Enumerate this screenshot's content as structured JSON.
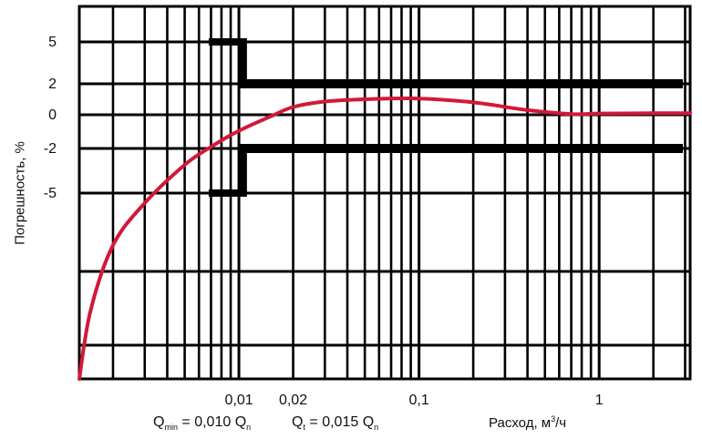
{
  "chart_data": {
    "type": "line",
    "ylabel": "Погрешность, %",
    "xlabel": "Расход, м³/ч",
    "xlabel_parts": {
      "text": "Расход, м",
      "sup": "3",
      "tail": "/ч"
    },
    "x_scale": "log",
    "xlim": [
      0.0013,
      3.2
    ],
    "y_ticks": [
      {
        "label": "5",
        "value": 5
      },
      {
        "label": "2",
        "value": 2
      },
      {
        "label": "0",
        "value": 0
      },
      {
        "label": "-2",
        "value": -2
      },
      {
        "label": "-5",
        "value": -5
      }
    ],
    "x_ticks": [
      {
        "label": "0,01",
        "value": 0.01
      },
      {
        "label": "0,02",
        "value": 0.02
      },
      {
        "label": "0,1",
        "value": 0.1
      },
      {
        "label": "1",
        "value": 1
      }
    ],
    "grid": true,
    "annotations": {
      "qmin": {
        "pre": "Q",
        "sub": "min",
        "mid": " = 0,010 Q",
        "sub2": "n"
      },
      "qt": {
        "pre": "Q",
        "sub": "t",
        "mid": " = 0,015 Q",
        "sub2": "n"
      }
    },
    "tolerance_band": {
      "outer": {
        "x_range": [
          0.008,
          0.0107
        ],
        "upper": 5,
        "lower": -5
      },
      "inner": {
        "x_range": [
          0.0107,
          3.2
        ],
        "upper": 2,
        "lower": -2
      }
    },
    "series": [
      {
        "color": "#d3183a",
        "points": [
          [
            0.0013,
            -20
          ],
          [
            0.0015,
            -14.5
          ],
          [
            0.002,
            -9.2
          ],
          [
            0.003,
            -5.8
          ],
          [
            0.005,
            -3.1
          ],
          [
            0.007,
            -1.9
          ],
          [
            0.01,
            -0.95
          ],
          [
            0.015,
            -0.1
          ],
          [
            0.02,
            0.5
          ],
          [
            0.03,
            0.85
          ],
          [
            0.05,
            1.0
          ],
          [
            0.1,
            1.05
          ],
          [
            0.2,
            0.8
          ],
          [
            0.4,
            0.3
          ],
          [
            0.7,
            0.05
          ],
          [
            1.0,
            0.08
          ],
          [
            2.0,
            0.1
          ],
          [
            3.2,
            0.1
          ]
        ]
      }
    ]
  }
}
